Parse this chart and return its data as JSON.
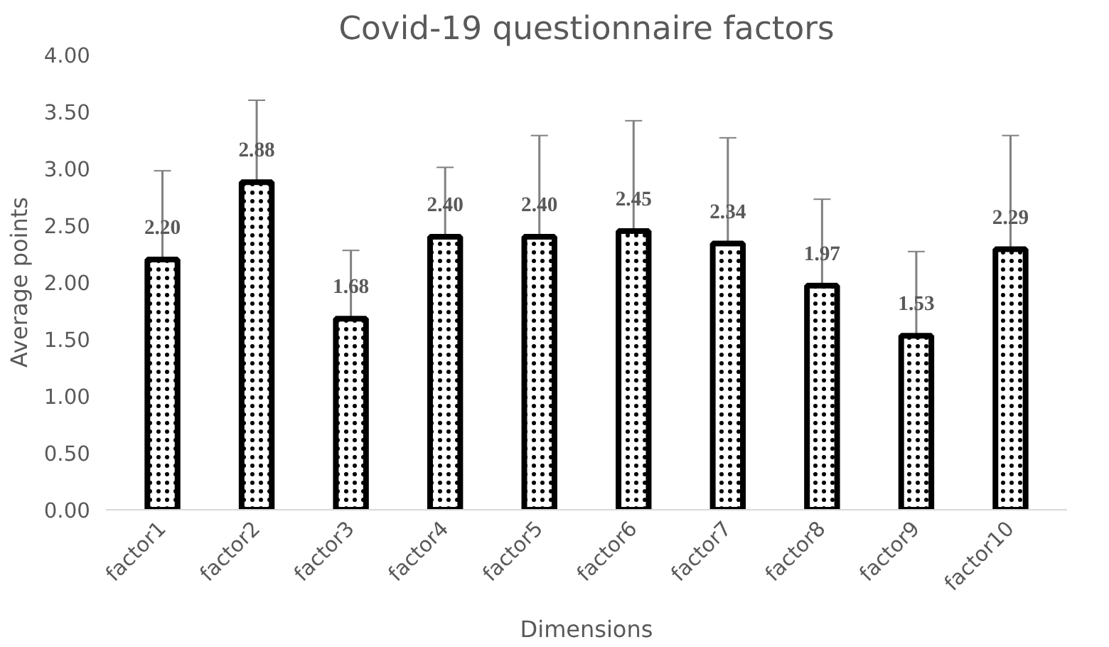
{
  "chart_data": {
    "type": "bar",
    "title": "Covid-19 questionnaire factors",
    "xlabel": "Dimensions",
    "ylabel": "Average points",
    "categories": [
      "factor1",
      "factor2",
      "factor3",
      "factor4",
      "factor5",
      "factor6",
      "factor7",
      "factor8",
      "factor9",
      "factor10"
    ],
    "values": [
      2.2,
      2.88,
      1.68,
      2.4,
      2.4,
      2.45,
      2.34,
      1.97,
      1.53,
      2.29
    ],
    "value_labels": [
      "2.20",
      "2.88",
      "1.68",
      "2.40",
      "2.40",
      "2.45",
      "2.34",
      "1.97",
      "1.53",
      "2.29"
    ],
    "errors": [
      0.78,
      0.72,
      0.6,
      0.61,
      0.89,
      0.97,
      0.93,
      0.76,
      0.74,
      1.0
    ],
    "color": "#ffffff",
    "ylim": [
      0,
      4
    ],
    "yticks": [
      {
        "value": 0,
        "label": "0.00"
      },
      {
        "value": 0.5,
        "label": "0.50"
      },
      {
        "value": 1,
        "label": "1.00"
      },
      {
        "value": 1.5,
        "label": "1.50"
      },
      {
        "value": 2,
        "label": "2.00"
      },
      {
        "value": 2.5,
        "label": "2.50"
      },
      {
        "value": 3,
        "label": "3.00"
      },
      {
        "value": 3.5,
        "label": "3.50"
      },
      {
        "value": 4,
        "label": "4.00"
      }
    ],
    "grid": false
  }
}
